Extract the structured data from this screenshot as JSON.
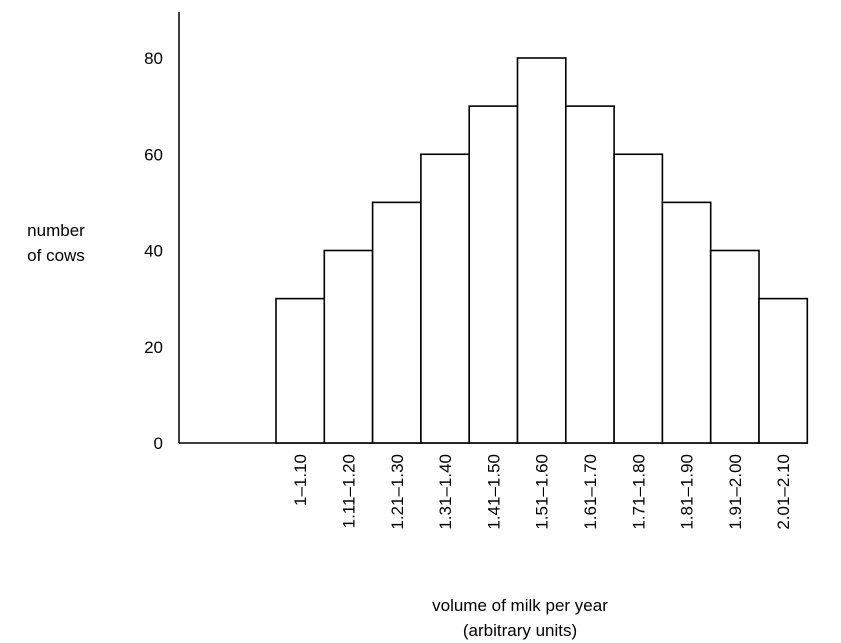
{
  "chart_data": {
    "type": "bar",
    "categories": [
      "1–1.10",
      "1.11–1.20",
      "1.21–1.30",
      "1.31–1.40",
      "1.41–1.50",
      "1.51–1.60",
      "1.61–1.70",
      "1.71–1.80",
      "1.81–1.90",
      "1.91–2.00",
      "2.01–2.10"
    ],
    "values": [
      30,
      40,
      50,
      60,
      70,
      80,
      70,
      60,
      50,
      40,
      30
    ],
    "yticks": [
      0,
      20,
      40,
      60,
      80
    ],
    "ylim": [
      0,
      80
    ],
    "ylabel_lines": [
      "number",
      "of cows"
    ],
    "xlabel_lines": [
      "volume of milk per year",
      "(arbitrary units)"
    ],
    "grid": false,
    "bar_fill": "#ffffff",
    "bar_stroke": "#000000"
  }
}
